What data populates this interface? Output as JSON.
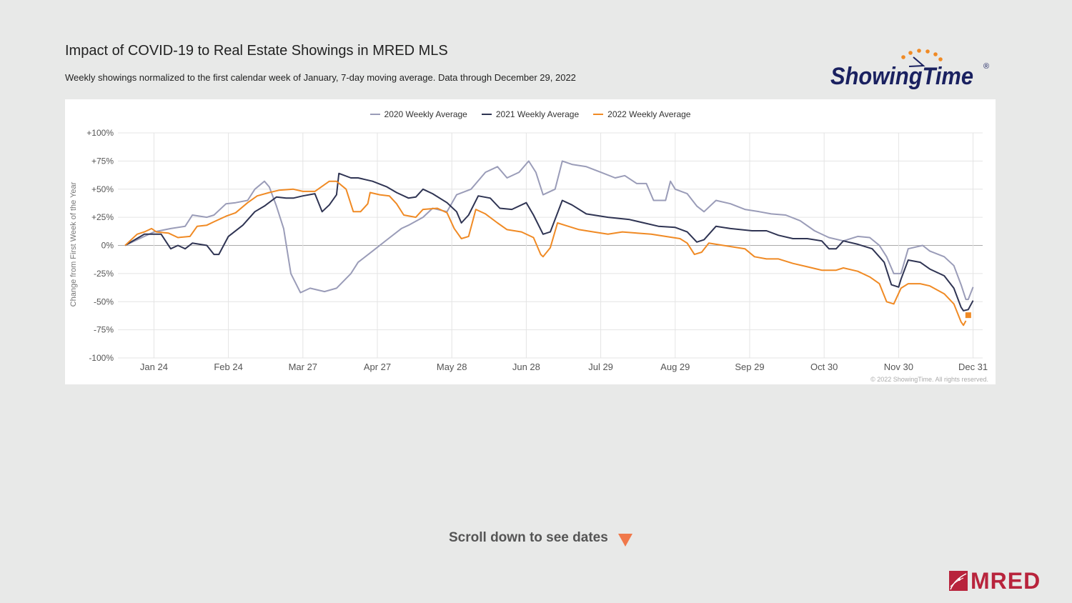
{
  "header": {
    "title": "Impact of COVID-19 to Real Estate Showings in MRED MLS",
    "subtitle": "Weekly showings normalized to the first calendar week of January, 7-day moving average. Data through December 29, 2022"
  },
  "logos": {
    "showingtime": "ShowingTime",
    "showingtime_mark": "®",
    "mred": "MRED"
  },
  "footer": {
    "scroll_hint": "Scroll down to see dates",
    "scroll_icon": "triangle-down-icon",
    "scroll_icon_color": "#f0784a"
  },
  "chart_data": {
    "type": "line",
    "title": "",
    "ylabel": "Change from First Week of the Year",
    "xlabel": "",
    "ylim": [
      -100,
      100
    ],
    "yticks": [
      100,
      75,
      50,
      25,
      0,
      -25,
      -50,
      -75,
      -100
    ],
    "ytick_labels": [
      "+100%",
      "+75%",
      "+50%",
      "+25%",
      "0%",
      "-25%",
      "-50%",
      "-75%",
      "-100%"
    ],
    "xlim": [
      "01-09",
      "12-31"
    ],
    "xtick_labels": [
      "Jan 24",
      "Feb 24",
      "Mar 27",
      "Apr 27",
      "May 28",
      "Jun 28",
      "Jul 29",
      "Aug 29",
      "Sep 29",
      "Oct 30",
      "Nov 30",
      "Dec 31"
    ],
    "grid": true,
    "legend_position": "top-center",
    "copyright": "© 2022 ShowingTime. All rights reserved.",
    "series": [
      {
        "name": "2020 Weekly Average",
        "color": "#9a9cb8",
        "points": [
          [
            "01-12",
            0
          ],
          [
            "01-20",
            8
          ],
          [
            "01-24",
            12
          ],
          [
            "01-31",
            15
          ],
          [
            "02-06",
            17
          ],
          [
            "02-09",
            27
          ],
          [
            "02-15",
            25
          ],
          [
            "02-18",
            27
          ],
          [
            "02-23",
            37
          ],
          [
            "02-27",
            38
          ],
          [
            "03-04",
            40
          ],
          [
            "03-07",
            50
          ],
          [
            "03-11",
            57
          ],
          [
            "03-13",
            52
          ],
          [
            "03-16",
            35
          ],
          [
            "03-19",
            15
          ],
          [
            "03-22",
            -25
          ],
          [
            "03-26",
            -42
          ],
          [
            "03-30",
            -38
          ],
          [
            "04-05",
            -41
          ],
          [
            "04-10",
            -38
          ],
          [
            "04-16",
            -25
          ],
          [
            "04-19",
            -15
          ],
          [
            "04-25",
            -5
          ],
          [
            "05-01",
            5
          ],
          [
            "05-07",
            15
          ],
          [
            "05-10",
            18
          ],
          [
            "05-16",
            25
          ],
          [
            "05-20",
            33
          ],
          [
            "05-26",
            30
          ],
          [
            "05-30",
            45
          ],
          [
            "06-05",
            50
          ],
          [
            "06-11",
            65
          ],
          [
            "06-16",
            70
          ],
          [
            "06-20",
            60
          ],
          [
            "06-25",
            65
          ],
          [
            "06-29",
            75
          ],
          [
            "07-02",
            65
          ],
          [
            "07-05",
            45
          ],
          [
            "07-10",
            50
          ],
          [
            "07-13",
            75
          ],
          [
            "07-17",
            72
          ],
          [
            "07-23",
            70
          ],
          [
            "07-29",
            65
          ],
          [
            "08-04",
            60
          ],
          [
            "08-08",
            62
          ],
          [
            "08-13",
            55
          ],
          [
            "08-17",
            55
          ],
          [
            "08-20",
            40
          ],
          [
            "08-25",
            40
          ],
          [
            "08-27",
            57
          ],
          [
            "08-29",
            50
          ],
          [
            "09-03",
            46
          ],
          [
            "09-07",
            35
          ],
          [
            "09-10",
            30
          ],
          [
            "09-15",
            40
          ],
          [
            "09-21",
            37
          ],
          [
            "09-27",
            32
          ],
          [
            "10-03",
            30
          ],
          [
            "10-08",
            28
          ],
          [
            "10-14",
            27
          ],
          [
            "10-20",
            22
          ],
          [
            "10-26",
            13
          ],
          [
            "11-01",
            7
          ],
          [
            "11-07",
            4
          ],
          [
            "11-13",
            8
          ],
          [
            "11-18",
            7
          ],
          [
            "11-22",
            0
          ],
          [
            "11-25",
            -10
          ],
          [
            "11-28",
            -25
          ],
          [
            "12-01",
            -25
          ],
          [
            "12-04",
            -3
          ],
          [
            "12-10",
            0
          ],
          [
            "12-13",
            -5
          ],
          [
            "12-19",
            -10
          ],
          [
            "12-23",
            -18
          ],
          [
            "12-26",
            -35
          ],
          [
            "12-28",
            -48
          ],
          [
            "12-29",
            -48
          ],
          [
            "12-31",
            -37
          ]
        ]
      },
      {
        "name": "2021 Weekly Average",
        "color": "#2f3453",
        "points": [
          [
            "01-12",
            0
          ],
          [
            "01-20",
            10
          ],
          [
            "01-24",
            10
          ],
          [
            "01-27",
            10
          ],
          [
            "01-31",
            -3
          ],
          [
            "02-03",
            0
          ],
          [
            "02-06",
            -3
          ],
          [
            "02-09",
            2
          ],
          [
            "02-15",
            0
          ],
          [
            "02-18",
            -8
          ],
          [
            "02-20",
            -8
          ],
          [
            "02-24",
            8
          ],
          [
            "03-02",
            18
          ],
          [
            "03-07",
            30
          ],
          [
            "03-11",
            35
          ],
          [
            "03-16",
            43
          ],
          [
            "03-20",
            42
          ],
          [
            "03-23",
            42
          ],
          [
            "03-27",
            44
          ],
          [
            "04-01",
            46
          ],
          [
            "04-04",
            30
          ],
          [
            "04-07",
            36
          ],
          [
            "04-10",
            45
          ],
          [
            "04-11",
            64
          ],
          [
            "04-16",
            60
          ],
          [
            "04-19",
            60
          ],
          [
            "04-25",
            57
          ],
          [
            "05-01",
            52
          ],
          [
            "05-05",
            47
          ],
          [
            "05-10",
            42
          ],
          [
            "05-13",
            43
          ],
          [
            "05-16",
            50
          ],
          [
            "05-20",
            46
          ],
          [
            "05-26",
            38
          ],
          [
            "05-30",
            30
          ],
          [
            "06-01",
            20
          ],
          [
            "06-04",
            27
          ],
          [
            "06-08",
            44
          ],
          [
            "06-13",
            42
          ],
          [
            "06-17",
            33
          ],
          [
            "06-22",
            32
          ],
          [
            "06-28",
            38
          ],
          [
            "07-01",
            27
          ],
          [
            "07-05",
            10
          ],
          [
            "07-08",
            12
          ],
          [
            "07-13",
            40
          ],
          [
            "07-17",
            36
          ],
          [
            "07-23",
            28
          ],
          [
            "08-01",
            25
          ],
          [
            "08-10",
            23
          ],
          [
            "08-16",
            20
          ],
          [
            "08-22",
            17
          ],
          [
            "08-29",
            16
          ],
          [
            "09-03",
            12
          ],
          [
            "09-07",
            3
          ],
          [
            "09-10",
            5
          ],
          [
            "09-15",
            17
          ],
          [
            "09-21",
            15
          ],
          [
            "09-30",
            13
          ],
          [
            "10-06",
            13
          ],
          [
            "10-11",
            9
          ],
          [
            "10-17",
            6
          ],
          [
            "10-23",
            6
          ],
          [
            "10-29",
            4
          ],
          [
            "11-01",
            -3
          ],
          [
            "11-04",
            -3
          ],
          [
            "11-07",
            4
          ],
          [
            "11-13",
            1
          ],
          [
            "11-19",
            -3
          ],
          [
            "11-24",
            -15
          ],
          [
            "11-27",
            -35
          ],
          [
            "11-30",
            -37
          ],
          [
            "12-01",
            -30
          ],
          [
            "12-04",
            -13
          ],
          [
            "12-09",
            -15
          ],
          [
            "12-13",
            -21
          ],
          [
            "12-19",
            -27
          ],
          [
            "12-23",
            -38
          ],
          [
            "12-26",
            -55
          ],
          [
            "12-27",
            -58
          ],
          [
            "12-29",
            -57
          ],
          [
            "12-31",
            -49
          ]
        ]
      },
      {
        "name": "2022 Weekly Average",
        "color": "#f08a24",
        "points": [
          [
            "01-12",
            0
          ],
          [
            "01-17",
            10
          ],
          [
            "01-20",
            12
          ],
          [
            "01-23",
            15
          ],
          [
            "01-25",
            12
          ],
          [
            "01-30",
            11
          ],
          [
            "02-03",
            7
          ],
          [
            "02-08",
            8
          ],
          [
            "02-11",
            17
          ],
          [
            "02-15",
            18
          ],
          [
            "02-18",
            21
          ],
          [
            "02-23",
            26
          ],
          [
            "02-27",
            29
          ],
          [
            "03-04",
            38
          ],
          [
            "03-08",
            44
          ],
          [
            "03-13",
            47
          ],
          [
            "03-17",
            49
          ],
          [
            "03-23",
            50
          ],
          [
            "03-27",
            48
          ],
          [
            "04-01",
            48
          ],
          [
            "04-07",
            57
          ],
          [
            "04-10",
            57
          ],
          [
            "04-14",
            50
          ],
          [
            "04-17",
            30
          ],
          [
            "04-20",
            30
          ],
          [
            "04-23",
            37
          ],
          [
            "04-24",
            47
          ],
          [
            "04-28",
            45
          ],
          [
            "05-02",
            44
          ],
          [
            "05-05",
            37
          ],
          [
            "05-08",
            27
          ],
          [
            "05-13",
            25
          ],
          [
            "05-16",
            32
          ],
          [
            "05-22",
            33
          ],
          [
            "05-26",
            29
          ],
          [
            "05-29",
            15
          ],
          [
            "06-01",
            6
          ],
          [
            "06-04",
            8
          ],
          [
            "06-07",
            32
          ],
          [
            "06-11",
            28
          ],
          [
            "06-16",
            20
          ],
          [
            "06-20",
            14
          ],
          [
            "06-26",
            12
          ],
          [
            "07-01",
            7
          ],
          [
            "07-04",
            -8
          ],
          [
            "07-05",
            -10
          ],
          [
            "07-08",
            -2
          ],
          [
            "07-11",
            20
          ],
          [
            "07-14",
            18
          ],
          [
            "07-20",
            14
          ],
          [
            "07-26",
            12
          ],
          [
            "08-01",
            10
          ],
          [
            "08-07",
            12
          ],
          [
            "08-13",
            11
          ],
          [
            "08-19",
            10
          ],
          [
            "08-25",
            8
          ],
          [
            "08-31",
            6
          ],
          [
            "09-03",
            2
          ],
          [
            "09-06",
            -8
          ],
          [
            "09-09",
            -6
          ],
          [
            "09-12",
            2
          ],
          [
            "09-15",
            1
          ],
          [
            "09-18",
            0
          ],
          [
            "09-27",
            -3
          ],
          [
            "10-01",
            -10
          ],
          [
            "10-06",
            -12
          ],
          [
            "10-11",
            -12
          ],
          [
            "10-17",
            -16
          ],
          [
            "10-23",
            -19
          ],
          [
            "10-29",
            -22
          ],
          [
            "11-04",
            -22
          ],
          [
            "11-07",
            -20
          ],
          [
            "11-13",
            -23
          ],
          [
            "11-18",
            -28
          ],
          [
            "11-22",
            -34
          ],
          [
            "11-25",
            -50
          ],
          [
            "11-28",
            -52
          ],
          [
            "12-01",
            -38
          ],
          [
            "12-04",
            -34
          ],
          [
            "12-09",
            -34
          ],
          [
            "12-13",
            -36
          ],
          [
            "12-19",
            -43
          ],
          [
            "12-23",
            -52
          ],
          [
            "12-26",
            -68
          ],
          [
            "12-27",
            -71
          ],
          [
            "12-28",
            -67
          ]
        ],
        "last_point": [
          "12-29",
          -62
        ]
      }
    ]
  }
}
